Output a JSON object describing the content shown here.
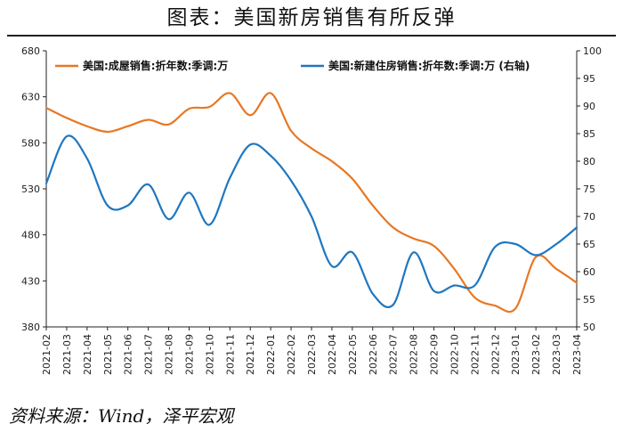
{
  "header": {
    "title": "图表：美国新房销售有所反弹"
  },
  "footer": {
    "source": "资料来源：Wind，泽平宏观"
  },
  "colors": {
    "orange": "#E87722",
    "blue": "#1F77BF",
    "axis": "#222222"
  },
  "chart_data": {
    "type": "line",
    "title": "图表：美国新房销售有所反弹",
    "categories": [
      "2021-02",
      "2021-03",
      "2021-04",
      "2021-05",
      "2021-06",
      "2021-07",
      "2021-08",
      "2021-09",
      "2021-10",
      "2021-11",
      "2021-12",
      "2022-01",
      "2022-02",
      "2022-03",
      "2022-04",
      "2022-05",
      "2022-06",
      "2022-07",
      "2022-08",
      "2022-09",
      "2022-10",
      "2022-11",
      "2022-12",
      "2023-01",
      "2023-02",
      "2023-03",
      "2023-04"
    ],
    "left_axis": {
      "ylim": [
        380,
        680
      ],
      "ticks": [
        380,
        430,
        480,
        530,
        580,
        630,
        680
      ]
    },
    "right_axis": {
      "ylim": [
        50,
        100
      ],
      "ticks": [
        50,
        55,
        60,
        65,
        70,
        75,
        80,
        85,
        90,
        95,
        100
      ]
    },
    "legend_position": "top",
    "series": [
      {
        "name": "美国:成屋销售:折年数:季调:万",
        "axis": "left",
        "color": "#E87722",
        "values": [
          618,
          607,
          598,
          592,
          598,
          605,
          600,
          617,
          619,
          634,
          610,
          634,
          593,
          574,
          560,
          541,
          512,
          488,
          476,
          468,
          443,
          412,
          403,
          400,
          456,
          443,
          428
        ]
      },
      {
        "name": "美国:新建住房销售:折年数:季调:万 (右轴)",
        "axis": "right",
        "color": "#1F77BF",
        "values": [
          76.0,
          84.5,
          80.5,
          72.0,
          72.0,
          75.8,
          69.5,
          74.3,
          68.5,
          77.0,
          83.0,
          81.0,
          76.5,
          70.0,
          61.0,
          63.5,
          56.0,
          54.0,
          63.5,
          56.5,
          57.5,
          57.5,
          64.5,
          65.0,
          63.0,
          65.0,
          68.0
        ]
      }
    ]
  }
}
